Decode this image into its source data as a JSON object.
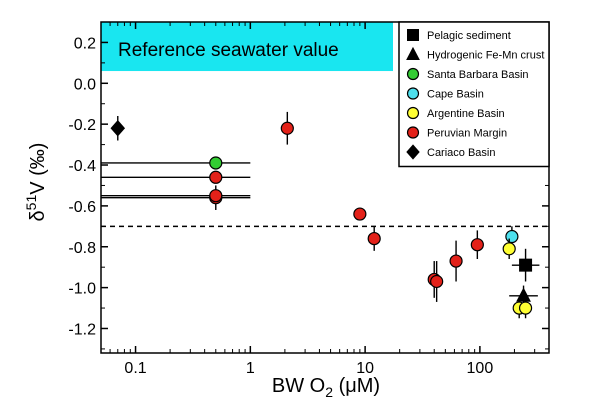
{
  "chart_data": {
    "type": "scatter",
    "x_scale": "log",
    "xlim": [
      0.05,
      400
    ],
    "ylim": [
      -1.32,
      0.3
    ],
    "xlabel": "BW O",
    "xlabel_sub": "2",
    "xlabel_unit": " (μM)",
    "ylabel": "δ",
    "ylabel_sup": "51",
    "ylabel_unit": "V (‰)",
    "x_ticks": [
      {
        "value": 0.1,
        "label": "0.1"
      },
      {
        "value": 1,
        "label": "1"
      },
      {
        "value": 10,
        "label": "10"
      },
      {
        "value": 100,
        "label": "100"
      }
    ],
    "y_ticks": [
      {
        "value": 0.2,
        "label": "0.2"
      },
      {
        "value": 0.0,
        "label": "0.0"
      },
      {
        "value": -0.2,
        "label": "-0.2"
      },
      {
        "value": -0.4,
        "label": "-0.4"
      },
      {
        "value": -0.6,
        "label": "-0.6"
      },
      {
        "value": -0.8,
        "label": "-0.8"
      },
      {
        "value": -1.0,
        "label": "-1.0"
      },
      {
        "value": -1.2,
        "label": "-1.2"
      }
    ],
    "reference_band": {
      "label": "Reference seawater value",
      "y_low": 0.06,
      "y_high": 0.3,
      "color": "#19e6f0"
    },
    "dashed_line_y": -0.7,
    "legend_position": "top-right",
    "series": [
      {
        "name": "Pelagic sediment",
        "marker": "square",
        "color": "#000000",
        "points": [
          {
            "x": 250,
            "y": -0.89,
            "x_err": [
              190,
              330
            ],
            "y_err": 0.08
          }
        ]
      },
      {
        "name": "Hydrogenic Fe-Mn crust",
        "marker": "triangle",
        "color": "#000000",
        "points": [
          {
            "x": 240,
            "y": -1.04,
            "x_err": [
              180,
              320
            ],
            "y_err": 0.05
          }
        ]
      },
      {
        "name": "Santa Barbara Basin",
        "marker": "circle",
        "color": "#33cc33",
        "points": [
          {
            "x": 0.5,
            "y": -0.39,
            "x_err": [
              0.05,
              1.0
            ]
          }
        ]
      },
      {
        "name": "Cape Basin",
        "marker": "circle",
        "color": "#4de0ee",
        "points": [
          {
            "x": 190,
            "y": -0.75,
            "y_err": 0.05
          }
        ]
      },
      {
        "name": "Argentine Basin",
        "marker": "circle",
        "color": "#ffff33",
        "points": [
          {
            "x": 180,
            "y": -0.81,
            "y_err": 0.05
          },
          {
            "x": 220,
            "y": -1.1,
            "y_err": 0.05
          },
          {
            "x": 250,
            "y": -1.1,
            "y_err": 0.05
          }
        ]
      },
      {
        "name": "Peruvian Margin",
        "marker": "circle",
        "color": "#e32119",
        "points": [
          {
            "x": 0.5,
            "y": -0.46,
            "x_err": [
              0.05,
              1.0
            ]
          },
          {
            "x": 0.5,
            "y": -0.56,
            "x_err": [
              0.05,
              1.0
            ],
            "y_err": 0.06
          },
          {
            "x": 0.5,
            "y": -0.55,
            "x_err": [
              0.05,
              1.0
            ]
          },
          {
            "x": 2.1,
            "y": -0.22,
            "y_err": 0.08
          },
          {
            "x": 9,
            "y": -0.64
          },
          {
            "x": 12,
            "y": -0.76,
            "y_err": 0.06
          },
          {
            "x": 40,
            "y": -0.96,
            "y_err": 0.09
          },
          {
            "x": 42,
            "y": -0.97,
            "y_err": 0.1
          },
          {
            "x": 62,
            "y": -0.87,
            "y_err": 0.1
          },
          {
            "x": 95,
            "y": -0.79,
            "y_err": 0.07
          }
        ]
      },
      {
        "name": "Cariaco Basin",
        "marker": "diamond",
        "color": "#000000",
        "points": [
          {
            "x": 0.07,
            "y": -0.22,
            "y_err": 0.06
          }
        ]
      }
    ]
  }
}
